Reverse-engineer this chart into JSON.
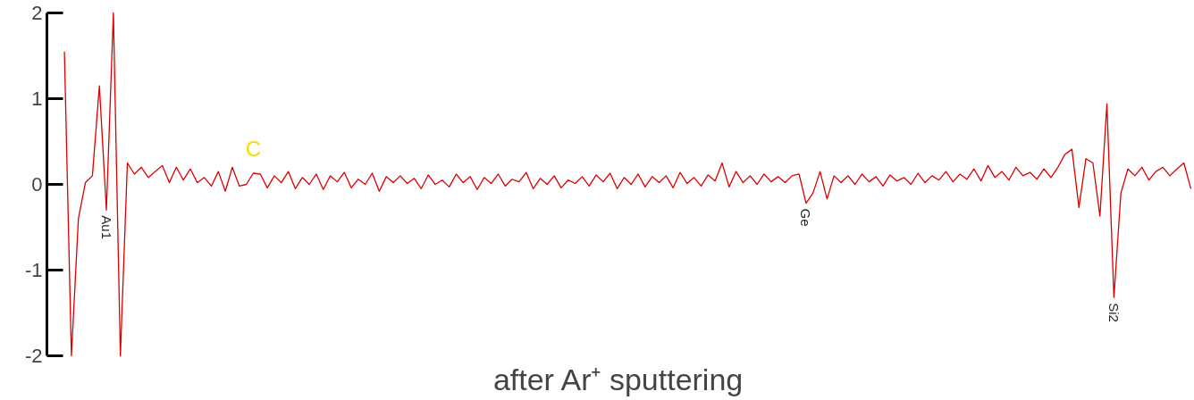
{
  "chart_data": {
    "type": "line",
    "title": "after Ar⁺ sputtering",
    "ylim": [
      -2,
      2
    ],
    "yticks": [
      -2,
      -1,
      0,
      1,
      2
    ],
    "marker": "none",
    "line_style": "solid",
    "annotations": [
      {
        "text": "Au1",
        "y": -0.3
      },
      {
        "text": "C",
        "y": 0.13
      },
      {
        "text": "Ge",
        "y": -0.22
      },
      {
        "text": "Si2",
        "y": -1.32
      }
    ],
    "categories": [
      null,
      null,
      null,
      null,
      null,
      null,
      null,
      null,
      null,
      null,
      null,
      null,
      null,
      null,
      null,
      null,
      null,
      null,
      null,
      null,
      null,
      null,
      null,
      null,
      null,
      null,
      null,
      null,
      null,
      null,
      null,
      null,
      null,
      null,
      null,
      null,
      null,
      null,
      null,
      null,
      null,
      null,
      null,
      null,
      null,
      null,
      null,
      null,
      null,
      null,
      null,
      null,
      null,
      null,
      null,
      null,
      null,
      null,
      null,
      null,
      null,
      null,
      null,
      null,
      null,
      null,
      null,
      null,
      null,
      null,
      null,
      null,
      null,
      null,
      null,
      null,
      null,
      null,
      null,
      null,
      null,
      null,
      null,
      null,
      null,
      null,
      null,
      null,
      null,
      null,
      null,
      null,
      null,
      null,
      null,
      null,
      null,
      null,
      null,
      null,
      null,
      null,
      null,
      null,
      null,
      null,
      null,
      null,
      null,
      null,
      null,
      null,
      null,
      null,
      null,
      null,
      null,
      null,
      null,
      null,
      null,
      null,
      null,
      null,
      null,
      null,
      null,
      null,
      null,
      null,
      null,
      null,
      null,
      null,
      null,
      null,
      null,
      null,
      null,
      null,
      null,
      null,
      null,
      null,
      null,
      null,
      null,
      null,
      null,
      null,
      null,
      null,
      null,
      null,
      null,
      null,
      null,
      null,
      null,
      null,
      null,
      null
    ],
    "series": [
      {
        "color": "#dd0000",
        "values": [
          1.55,
          -2.0,
          -0.4,
          0.02,
          0.1,
          1.15,
          -0.3,
          2.0,
          -2.0,
          0.25,
          0.12,
          0.2,
          0.08,
          0.15,
          0.22,
          0.02,
          0.2,
          0.05,
          0.18,
          0.02,
          0.08,
          -0.02,
          0.15,
          -0.08,
          0.2,
          -0.02,
          0.0,
          0.13,
          0.12,
          -0.04,
          0.1,
          0.02,
          0.15,
          -0.05,
          0.08,
          0.0,
          0.12,
          -0.06,
          0.1,
          0.03,
          0.14,
          -0.04,
          0.06,
          0.0,
          0.13,
          -0.08,
          0.09,
          0.02,
          0.1,
          0.01,
          0.07,
          -0.05,
          0.11,
          0.0,
          0.05,
          -0.03,
          0.12,
          0.02,
          0.09,
          -0.06,
          0.08,
          0.01,
          0.12,
          -0.02,
          0.06,
          0.03,
          0.14,
          -0.05,
          0.07,
          0.0,
          0.1,
          -0.04,
          0.05,
          0.01,
          0.09,
          -0.02,
          0.11,
          0.03,
          0.13,
          -0.05,
          0.08,
          0.0,
          0.12,
          -0.03,
          0.09,
          0.02,
          0.1,
          -0.04,
          0.14,
          0.01,
          0.08,
          -0.02,
          0.11,
          0.04,
          0.25,
          -0.03,
          0.15,
          0.02,
          0.1,
          0.0,
          0.12,
          0.03,
          0.09,
          0.02,
          0.1,
          0.12,
          -0.22,
          -0.1,
          0.15,
          -0.17,
          0.1,
          0.02,
          0.1,
          0.0,
          0.12,
          0.03,
          0.09,
          -0.02,
          0.11,
          0.04,
          0.08,
          0.0,
          0.13,
          0.02,
          0.1,
          0.05,
          0.15,
          0.03,
          0.12,
          0.06,
          0.18,
          0.04,
          0.22,
          0.08,
          0.15,
          0.05,
          0.2,
          0.1,
          0.14,
          0.06,
          0.18,
          0.08,
          0.2,
          0.35,
          0.41,
          -0.27,
          0.3,
          0.25,
          -0.37,
          0.94,
          -1.32,
          -0.1,
          0.18,
          0.1,
          0.2,
          0.05,
          0.15,
          0.2,
          0.1,
          0.18,
          0.25,
          -0.05
        ]
      }
    ]
  }
}
